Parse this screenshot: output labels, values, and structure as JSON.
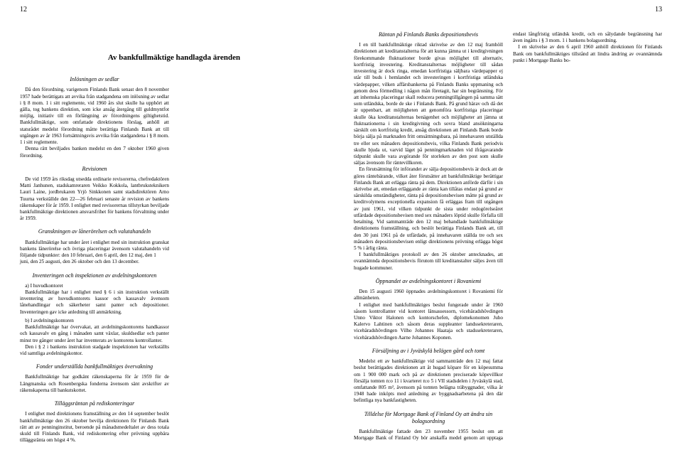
{
  "pages": {
    "left": {
      "number": "12"
    },
    "right": {
      "number": "13"
    }
  },
  "mainHeading": "Av bankfullmäktige handlagda ärenden",
  "left": {
    "h1": "Inlösningen av sedlar",
    "p1": "Då den förordning, varigenom Finlands Bank senast den 8 november 1957 hade berättigats att avvika från stadgandena om inlösning av sedlar i § 8 mom. 1 i sitt reglemente, vid 1960 års slut skulle ha upphört att gälla, tog bankens direktion, som icke ansåg återgång till guldmyntfot möjlig, initiativ till en förlängning av förordningens giltighetstid. Bankfullmäktige, som omfattade direktionens förslag, anhöll att statsrådet medelst förordning måtte berättiga Finlands Bank att till utgången av år 1963 fortsättningsvis avvika från stadgandena i § 8 mom. 1 i sitt reglemente.",
    "p2": "Denna rätt beviljades banken medelst en den 7 oktober 1960 given förordning.",
    "h2": "Revisionen",
    "p3": "De vid 1959 års riksdag utsedda ordinarie revisorerna, chefredaktören Matti Janhunen, stadskamreraren Veikko Kokkola, lantbruksteknikern Lauri Laine, jordbrukaren Yrjö Sinkkonen samt stadsdirektören Arno Tuurna verkställde den 22—26 februari senaste år revision av bankens räkenskaper för år 1959. I enlighet med revisorernas tillstyrkan beviljade bankfullmäktige direktionen ansvarsfrihet för bankens förvaltning under år 1959.",
    "h3": "Granskningen av lånerörelsen och valutahandeln",
    "p4": "Bankfullmäktige har under året i enlighet med sin instruktion granskat bankens lånerörelse och övriga placeringar ävensom valutahandeln vid följande tidpunkter: den 10 februari, den 6 april, den 12 maj, den 1",
    "p5": "juni, den 25 augusti, den 26 oktober och den 13 december.",
    "h4": "Inventeringen och inspektionen av avdelningskontoren",
    "p6a": "a) I huvudkontoret",
    "p6": "Bankfullmäktige har i enlighet med § 6 i sin instruktion verkställt inventering av huvudkontorets kassor och kassavalv ävensom lånehandlingar och säkerheter samt panter och depositioner. Inventeringen gav icke anledning till anmärkning.",
    "p7a": "b) I avdelningskontoren",
    "p7": "Bankfullmäktige har övervakat, att avdelningskontorens handkassor och kassavalv en gång i månaden samt växlar, skuldsedlar och panter minst tre gånger under året har inventerats av kontorens kontrollanter.",
    "p8": "Den i § 2 i bankens instruktion stadgade inspektionen har verkställts vid samtliga avdelningskontor.",
    "h5": "Fonder underställda bankfullmäktiges övervakning",
    "p9": "Bankfullmäktige har godkänt räkenskaperna för år 1959 för de Längmanska och Rosenbergska fonderna ävensom sänt avskrifter av räkenskaperna till bankutskottet.",
    "h6": "Tilläggsräntan på rediskonteringar",
    "p10": "I enlighet med direktionens framställning av den 14 september beslöt bankfullmäktige den 26 oktober bevilja direktionen för Finlands Bank rätt att av penninginstitut, beroende på månadsmedeltalet av dess totala skuld till Finlands Bank, vid rediskontering efter prövning uppbära tilläggsränta om högst 4 %."
  },
  "right": {
    "h1": "Räntan på Finlands Banks depositionsbevis",
    "p1": "I en till bankfullmäktige riktad skrivelse av den 12 maj framhöll direktionen att kreditanstalterna för att kunna jämna ut i kreditgivningen förekommande fluktuationer borde givas möjlighet till alternativ, kortfristig investering. Kreditanstalternas möjligheter till sådan investering är dock ringa, emedan kortfristiga säljbara värdepapper ej står till buds i hemlandet och investeringen i kortfristiga utländska värdepapper, vilken affärsbankerna på Finlands Banks uppmaning och genom dess förmedling i någon mån företagit, har sin begränsning. För att inhemska placeringar skall reducera penningtillgången på samma sätt som utländska, borde de ske i Finlands Bank. På grund härav och då det är uppenbart, att möjligheten att genomföra kortfristiga placeringar skulle öka kreditanstalternas benägenhet och möjligheter att jämna ut fluktuationerna i sin kreditgivning och sovra bland ansökningarna särskilt om kortfristig kredit, ansåg direktionen att Finlands Bank borde börja sälja på marknaden fritt omsättningsbara, på innehavaren utställda tre eller sex månaders depositionsbevis, vilka Finlands Bank periodvis skulle bjuda ut, varvid läget på penningmarknaden vid ifrågavarande tidpunkt skulle vara avgörande för storleken av den post som skulle säljas ävensom för räntevillkoren.",
    "p2": "En förutsättning för införandet av sälja depositionsbevis är dock att de göres räntebärande, vilket åter förutsätter att bankfullmäktige berättigar Finlands Bank att erlägga ränta på dem. Direktionen anförde därför i sin skrivelse att, emedan erläggande av ränta kan tillåtas endast på grund av särskilda omständigheter, ränta på depositionsbevisen måtte på grund av kreditvolymens exceptionella expansion få erläggas fram till utgången av juni 1961, vid vilken tidpunkt de sista under redogörelseåret utfärdade depositionsbevisen med sex månaders löptid skulle förfalla till betalning. Vid sammanträde den 12 maj behandlade bankfullmäktige direktionens framställning, och beslöt berättiga Finlands Bank att, till den 30 juni 1961 på de utfärdade, på innehavaren ställda tre och sex månaders depositionsbevisen enligt direktionens prövning erlägga högst 5 % i årlig ränta.",
    "p3": "I bankfullmäktiges protokoll av den 26 oktober antecknades, att ovannämnda depositionsbevis förutom till kreditanstalter säljes även till hugade kommuner.",
    "h2": "Öppnandet av avdelningskontoret i Rovaniemi",
    "p4": "Den 15 augusti 1960 öppnades avdelningskontoret i Rovaniemi för allmänheten.",
    "p5": "I enlighet med bankfullmäktiges beslut fungerade under år 1960 såsom kontrollanter vid kontoret länsassessorn, vicehäradshövdingen Unno Viktor Halonen och kontorschefen, diplomekonomen Juho Kalervo Lahtinen och såsom deras suppleanter landssekreteraren, vicehäradshövdingen Vilho Johannes Haataja och stadssekreteraren, vicehäradshövdingen Aarne Johannes Koponen.",
    "h3": "Försäljning av i Jyväskylä belägen gård och tomt",
    "p6": "Medelst ett av bankfullmäktige vid sammanträde den 12 maj fattat beslut berättigades direktionen att åt hugad köpare för en köpesumma om 1 900 000 mark och på av direktionen preciserade köpevillkor försälja tomten n:o 11 i kvarteret n:o 5 i VII stadsdelen i Jyväskylä stad, omfattande 805 m², ävensom på tomten belägna träbyggnader, vilka år 1948 hade inköpts med anledning av byggnadsarbetena på den där befintliga nya bankfastigheten.",
    "h4": "Tilldelse för Mortgage Bank of Finland Oy att ändra sin bolagsordning",
    "p7": "Bankfullmäktige fattade den 23 november 1955 beslut om att Mortgage Bank of Finland Oy bör anskaffa medel genom att upptaga endast långfristig utländsk kredit, och en sålydande begränsning har även ingåtts i § 3 mom. 1 i bankens bolagsordning.",
    "p8": "I en skrivelse av den 6 april 1960 anhöll direktionen för Finlands Bank om bankfullmäktiges tillstånd att lindra ändring av ovannämnda punkt i Mortgage Banks bo-"
  },
  "style": {
    "bodyFontSize": 7.2,
    "headingFontSize": 11,
    "subHeadingFontSize": 8,
    "pageNumFontSize": 10,
    "lineHeight": 1.28,
    "columnGap": 14,
    "background": "#ffffff",
    "textColor": "#000000"
  }
}
